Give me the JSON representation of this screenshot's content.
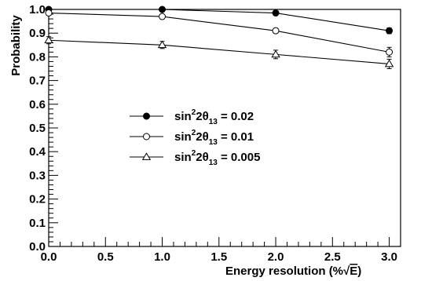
{
  "chart_data": {
    "type": "line",
    "xlabel_main": "Energy resolution (%",
    "xlabel_sqrt": "E",
    "xlabel_close": ")",
    "ylabel": "Probability",
    "xlim": [
      0.0,
      3.1
    ],
    "ylim": [
      0.0,
      1.0
    ],
    "x_ticks": [
      "0.0",
      "0.5",
      "1.0",
      "1.5",
      "2.0",
      "2.5",
      "3.0"
    ],
    "x_tick_values": [
      0.0,
      0.5,
      1.0,
      1.5,
      2.0,
      2.5,
      3.0
    ],
    "y_ticks": [
      "0.0",
      "0.1",
      "0.2",
      "0.3",
      "0.4",
      "0.5",
      "0.6",
      "0.7",
      "0.8",
      "0.9",
      "1.0"
    ],
    "y_tick_values": [
      0.0,
      0.1,
      0.2,
      0.3,
      0.4,
      0.5,
      0.6,
      0.7,
      0.8,
      0.9,
      1.0
    ],
    "x": [
      0.0,
      1.0,
      2.0,
      3.0
    ],
    "series": [
      {
        "marker": "filled-circle",
        "legend_value": "0.02",
        "values": [
          1.0,
          1.0,
          0.985,
          0.91
        ],
        "errors": [
          0.004,
          0.004,
          0.006,
          0.012
        ]
      },
      {
        "marker": "open-circle",
        "legend_value": "0.01",
        "values": [
          0.985,
          0.97,
          0.91,
          0.82
        ],
        "errors": [
          0.006,
          0.008,
          0.01,
          0.02
        ]
      },
      {
        "marker": "open-triangle",
        "legend_value": "0.005",
        "values": [
          0.87,
          0.85,
          0.81,
          0.77
        ],
        "errors": [
          0.015,
          0.015,
          0.018,
          0.02
        ]
      }
    ],
    "legend": {
      "prefix": "sin",
      "sup": "2",
      "mid": "2θ",
      "sub": "13",
      "equals": " = ",
      "placement": "center-left"
    },
    "grid": false
  }
}
